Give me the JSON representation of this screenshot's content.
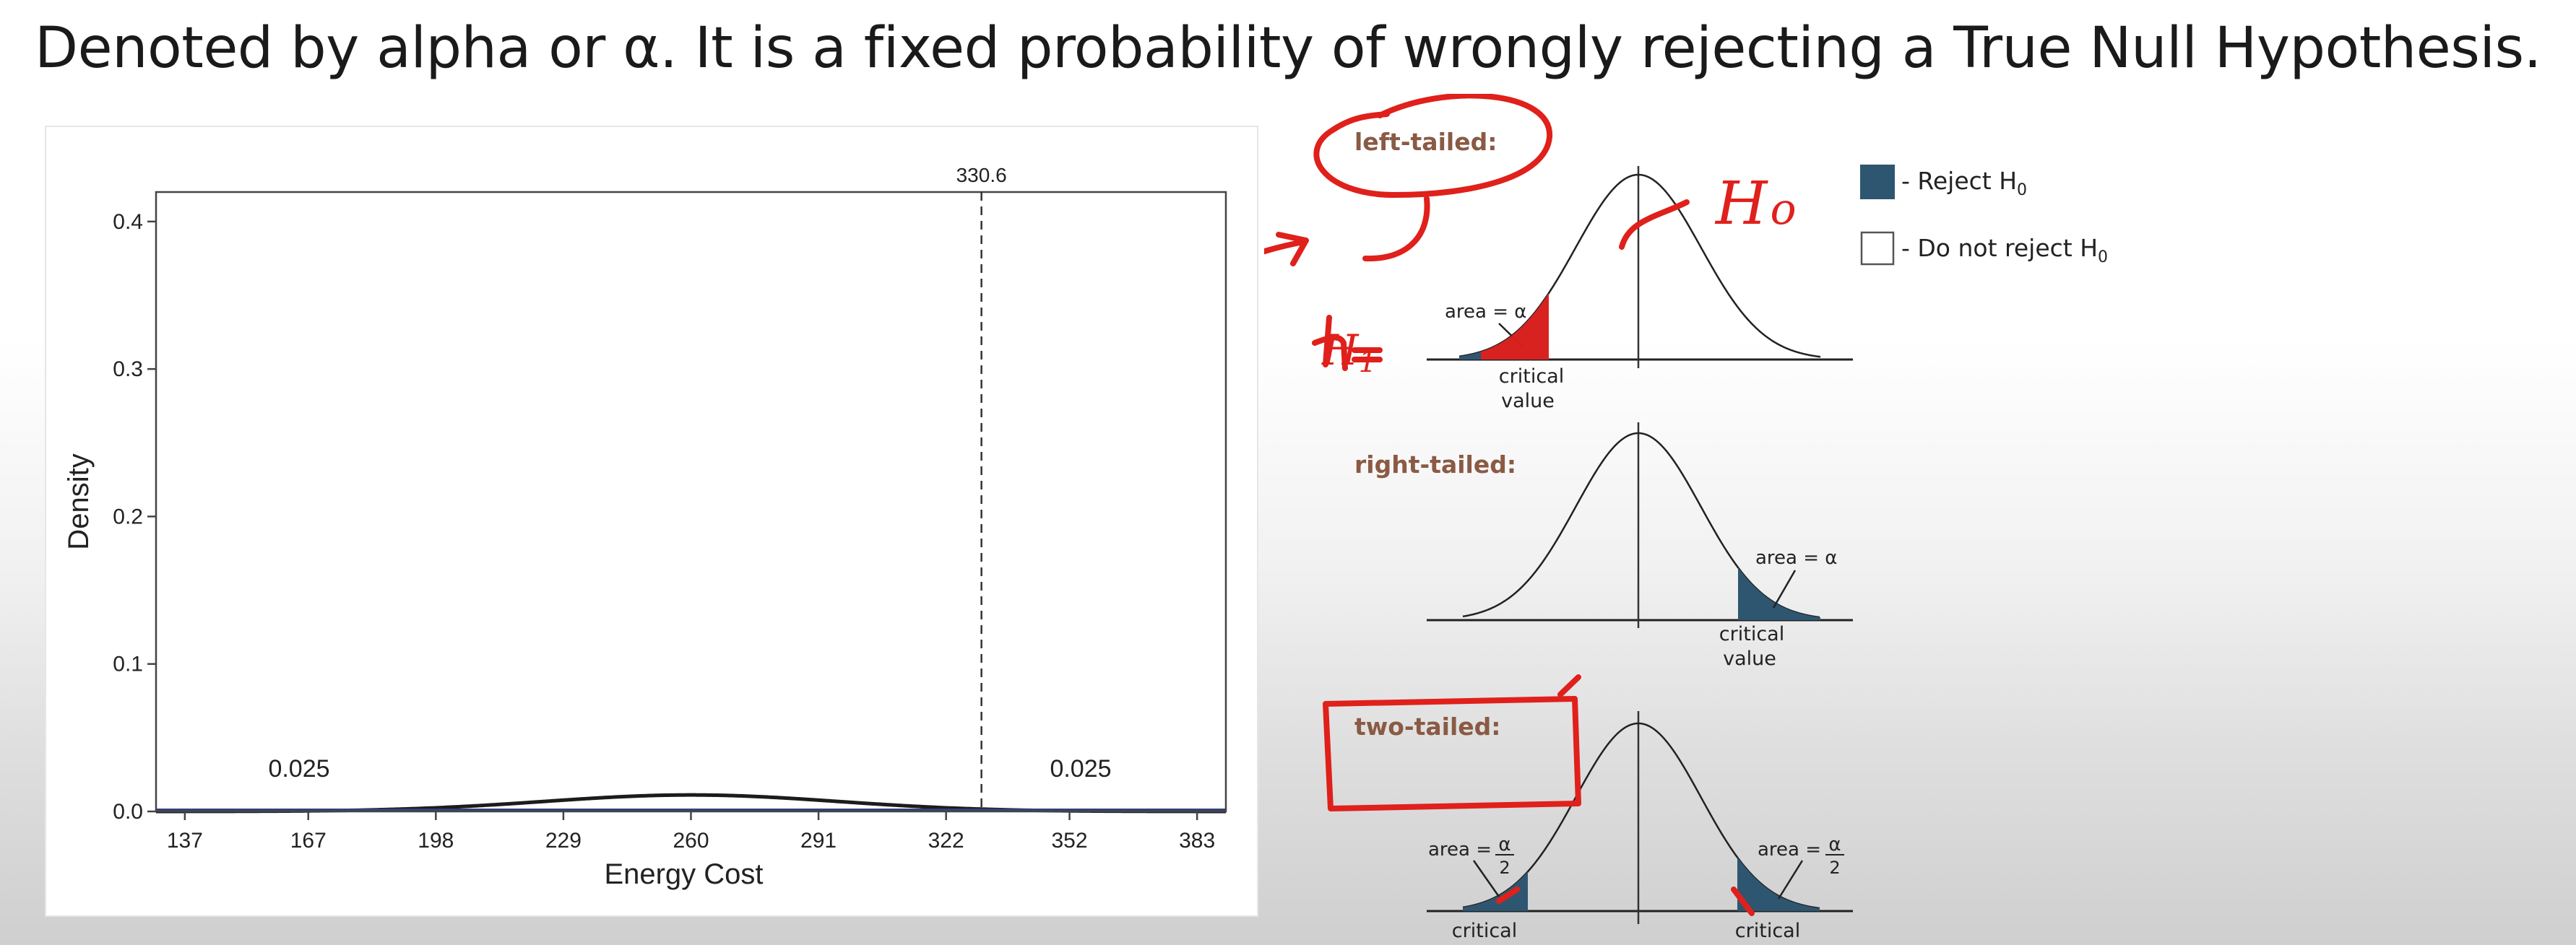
{
  "headline": "Denoted by alpha or α. It is a fixed probability of wrongly rejecting a True Null Hypothesis.",
  "chart_data": {
    "type": "area",
    "title": "",
    "xlabel": "Energy Cost",
    "ylabel": "Density",
    "distribution": {
      "name": "normal",
      "mean": 260,
      "sd": 35.7
    },
    "xlim": [
      130,
      390
    ],
    "ylim": [
      0,
      0.42
    ],
    "xticks": [
      "137",
      "167",
      "198",
      "229",
      "260",
      "291",
      "322",
      "352",
      "383"
    ],
    "xtick_values": [
      137,
      167,
      198,
      229,
      260,
      291,
      322,
      352,
      383
    ],
    "yticks": [
      "0.0",
      "0.1",
      "0.2",
      "0.3",
      "0.4"
    ],
    "ytick_values": [
      0.0,
      0.1,
      0.2,
      0.3,
      0.4
    ],
    "shaded_regions": [
      {
        "from": 130,
        "to": 198,
        "area_label": "0.025",
        "color": "#8b1212"
      },
      {
        "from": 322,
        "to": 390,
        "area_label": "0.025",
        "color": "#8b1212"
      }
    ],
    "reference_line": {
      "x": 330.6,
      "label": "330.6",
      "style": "dashed"
    },
    "grid": false
  },
  "tails": {
    "left_title": "left-tailed:",
    "right_title": "right-tailed:",
    "two_title": "two-tailed:",
    "area_alpha": "area = α",
    "area_half_prefix": "area =",
    "alpha_sym": "α",
    "two_sym": "2",
    "critical": "critical",
    "value": "value",
    "title_color": "#8a5a44",
    "fill_color": "#2e5670"
  },
  "legend": {
    "reject": "- Reject H",
    "not_reject": "- Do not reject H",
    "sub": "0"
  },
  "annotations": {
    "h0": "H",
    "h0_sub": "o",
    "h1": "H",
    "h1_sub": "1",
    "ink_color": "#e0201b"
  }
}
